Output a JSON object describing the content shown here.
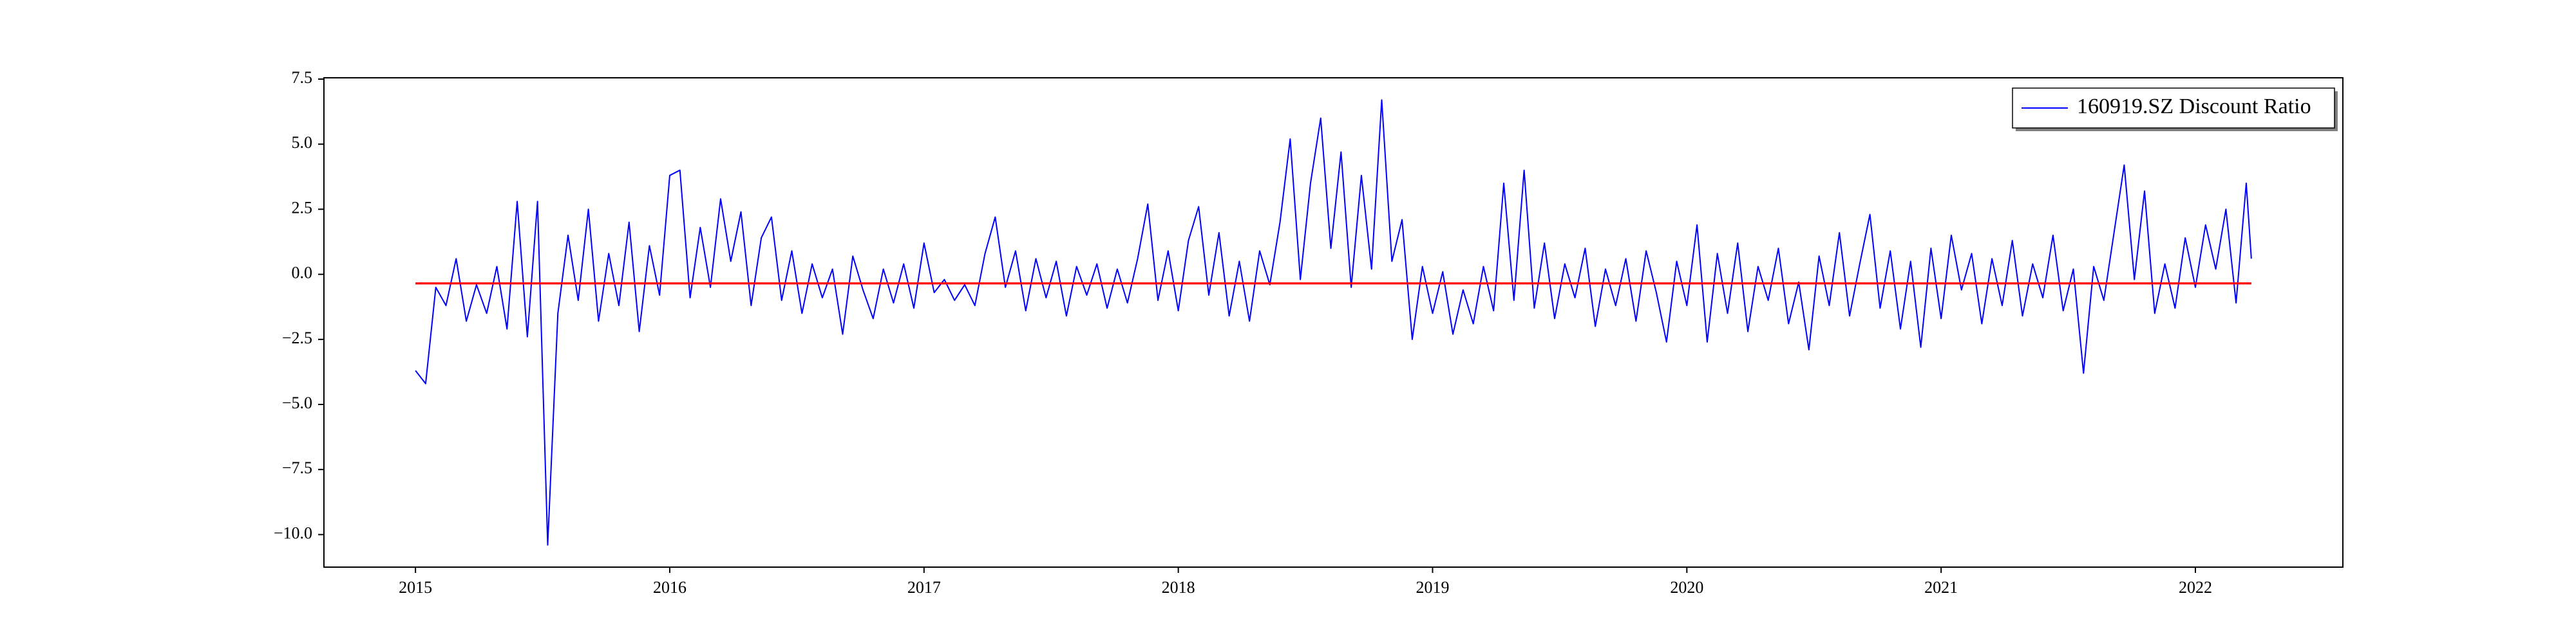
{
  "chart_data": {
    "type": "line",
    "legend": "upper right",
    "xlim": [
      2014.64,
      2022.58
    ],
    "xticks": [
      2015,
      2016,
      2017,
      2018,
      2019,
      2020,
      2021,
      2022
    ],
    "ylim": [
      -11.25,
      7.55
    ],
    "yticks": [
      {
        "value": -10,
        "label": "−10.0"
      },
      {
        "value": -7.5,
        "label": "−7.5"
      },
      {
        "value": -5,
        "label": "−5.0"
      },
      {
        "value": -2.5,
        "label": "−2.5"
      },
      {
        "value": 0,
        "label": "0.0"
      },
      {
        "value": 2.5,
        "label": "2.5"
      },
      {
        "value": 5,
        "label": "5.0"
      },
      {
        "value": 7.5,
        "label": "7.5"
      }
    ],
    "series": [
      {
        "name": "160919.SZ Discount Ratio",
        "color": "#0000ff",
        "x": [
          2015.0,
          2015.04,
          2015.08,
          2015.12,
          2015.16,
          2015.2,
          2015.24,
          2015.28,
          2015.32,
          2015.36,
          2015.4,
          2015.44,
          2015.48,
          2015.52,
          2015.56,
          2015.6,
          2015.64,
          2015.68,
          2015.72,
          2015.76,
          2015.8,
          2015.84,
          2015.88,
          2015.92,
          2015.96,
          2016.0,
          2016.04,
          2016.08,
          2016.12,
          2016.16,
          2016.2,
          2016.24,
          2016.28,
          2016.32,
          2016.36,
          2016.4,
          2016.44,
          2016.48,
          2016.52,
          2016.56,
          2016.6,
          2016.64,
          2016.68,
          2016.72,
          2016.76,
          2016.8,
          2016.84,
          2016.88,
          2016.92,
          2016.96,
          2017.0,
          2017.04,
          2017.08,
          2017.12,
          2017.16,
          2017.2,
          2017.24,
          2017.28,
          2017.32,
          2017.36,
          2017.4,
          2017.44,
          2017.48,
          2017.52,
          2017.56,
          2017.6,
          2017.64,
          2017.68,
          2017.72,
          2017.76,
          2017.8,
          2017.84,
          2017.88,
          2017.92,
          2017.96,
          2018.0,
          2018.04,
          2018.08,
          2018.12,
          2018.16,
          2018.2,
          2018.24,
          2018.28,
          2018.32,
          2018.36,
          2018.4,
          2018.44,
          2018.48,
          2018.52,
          2018.56,
          2018.6,
          2018.64,
          2018.68,
          2018.72,
          2018.76,
          2018.8,
          2018.84,
          2018.88,
          2018.92,
          2018.96,
          2019.0,
          2019.04,
          2019.08,
          2019.12,
          2019.16,
          2019.2,
          2019.24,
          2019.28,
          2019.32,
          2019.36,
          2019.4,
          2019.44,
          2019.48,
          2019.52,
          2019.56,
          2019.6,
          2019.64,
          2019.68,
          2019.72,
          2019.76,
          2019.8,
          2019.84,
          2019.88,
          2019.92,
          2019.96,
          2020.0,
          2020.04,
          2020.08,
          2020.12,
          2020.16,
          2020.2,
          2020.24,
          2020.28,
          2020.32,
          2020.36,
          2020.4,
          2020.44,
          2020.48,
          2020.52,
          2020.56,
          2020.6,
          2020.64,
          2020.68,
          2020.72,
          2020.76,
          2020.8,
          2020.84,
          2020.88,
          2020.92,
          2020.96,
          2021.0,
          2021.04,
          2021.08,
          2021.12,
          2021.16,
          2021.2,
          2021.24,
          2021.28,
          2021.32,
          2021.36,
          2021.4,
          2021.44,
          2021.48,
          2021.52,
          2021.56,
          2021.6,
          2021.64,
          2021.68,
          2021.72,
          2021.76,
          2021.8,
          2021.84,
          2021.88,
          2021.92,
          2021.96,
          2022.0,
          2022.04,
          2022.08,
          2022.12,
          2022.16,
          2022.2,
          2022.22
        ],
        "values": [
          -3.7,
          -4.2,
          -0.5,
          -1.2,
          0.6,
          -1.8,
          -0.4,
          -1.5,
          0.3,
          -2.1,
          2.8,
          -2.4,
          2.8,
          -10.4,
          -1.5,
          1.5,
          -1.0,
          2.5,
          -1.8,
          0.8,
          -1.2,
          2.0,
          -2.2,
          1.1,
          -0.8,
          3.8,
          4.0,
          -0.9,
          1.8,
          -0.5,
          2.9,
          0.5,
          2.4,
          -1.2,
          1.4,
          2.2,
          -1.0,
          0.9,
          -1.5,
          0.4,
          -0.9,
          0.2,
          -2.3,
          0.7,
          -0.6,
          -1.7,
          0.2,
          -1.1,
          0.4,
          -1.3,
          1.2,
          -0.7,
          -0.2,
          -1.0,
          -0.4,
          -1.2,
          0.8,
          2.2,
          -0.5,
          0.9,
          -1.4,
          0.6,
          -0.9,
          0.5,
          -1.6,
          0.3,
          -0.8,
          0.4,
          -1.3,
          0.2,
          -1.1,
          0.6,
          2.7,
          -1.0,
          0.9,
          -1.4,
          1.3,
          2.6,
          -0.8,
          1.6,
          -1.6,
          0.5,
          -1.8,
          0.9,
          -0.4,
          2.0,
          5.2,
          -0.2,
          3.5,
          6.0,
          1.0,
          4.7,
          -0.5,
          3.8,
          0.2,
          6.7,
          0.5,
          2.1,
          -2.5,
          0.3,
          -1.5,
          0.1,
          -2.3,
          -0.6,
          -1.9,
          0.3,
          -1.4,
          3.5,
          -1.0,
          4.0,
          -1.3,
          1.2,
          -1.7,
          0.4,
          -0.9,
          1.0,
          -2.0,
          0.2,
          -1.2,
          0.6,
          -1.8,
          0.9,
          -0.7,
          -2.6,
          0.5,
          -1.2,
          1.9,
          -2.6,
          0.8,
          -1.5,
          1.2,
          -2.2,
          0.3,
          -1.0,
          1.0,
          -1.9,
          -0.3,
          -2.9,
          0.7,
          -1.2,
          1.6,
          -1.6,
          0.4,
          2.3,
          -1.3,
          0.9,
          -2.1,
          0.5,
          -2.8,
          1.0,
          -1.7,
          1.5,
          -0.6,
          0.8,
          -1.9,
          0.6,
          -1.2,
          1.3,
          -1.6,
          0.4,
          -0.9,
          1.5,
          -1.4,
          0.2,
          -3.8,
          0.3,
          -1.0,
          1.6,
          4.2,
          -0.2,
          3.2,
          -1.5,
          0.4,
          -1.3,
          1.4,
          -0.5,
          1.9,
          0.2,
          2.5,
          -1.1,
          3.5,
          0.6
        ]
      },
      {
        "color": "#ff0000",
        "x": [
          2015.0,
          2022.22
        ],
        "values": [
          -0.35,
          -0.35
        ]
      }
    ]
  }
}
